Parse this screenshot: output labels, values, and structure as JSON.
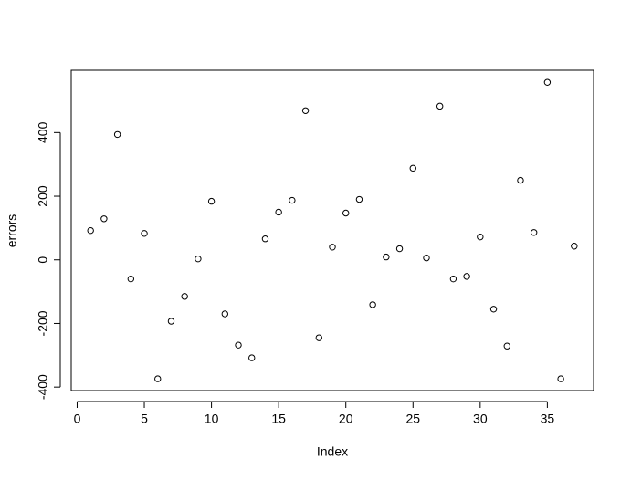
{
  "chart_data": {
    "type": "scatter",
    "xlabel": "Index",
    "ylabel": "errors",
    "x": [
      1,
      2,
      3,
      4,
      5,
      6,
      7,
      8,
      9,
      10,
      11,
      12,
      13,
      14,
      15,
      16,
      17,
      18,
      19,
      20,
      21,
      22,
      23,
      24,
      25,
      26,
      27,
      28,
      29,
      30,
      31,
      32,
      33,
      34,
      35,
      36,
      37
    ],
    "values": [
      92,
      129,
      394,
      -60,
      83,
      -374,
      -193,
      -115,
      3,
      184,
      -170,
      -268,
      -308,
      66,
      150,
      187,
      469,
      -245,
      40,
      147,
      190,
      -141,
      9,
      35,
      288,
      6,
      483,
      -60,
      -52,
      72,
      -155,
      -271,
      250,
      86,
      558,
      -374,
      43
    ],
    "color": "#000000",
    "xlim": [
      -0.44,
      38.44
    ],
    "ylim": [
      -411,
      596
    ],
    "xticks": [
      0,
      5,
      10,
      15,
      20,
      25,
      30,
      35
    ],
    "yticks": [
      -400,
      -200,
      0,
      200,
      400
    ]
  }
}
